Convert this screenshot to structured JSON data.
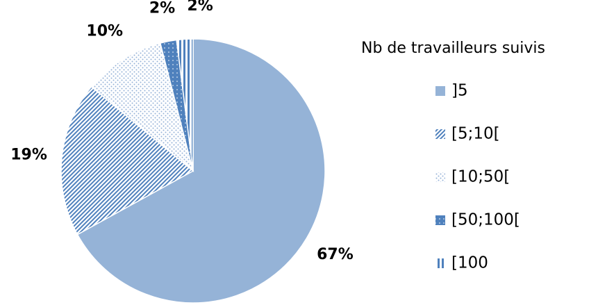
{
  "chart_data": {
    "type": "pie",
    "legend_title": "Nb de travailleurs suivis",
    "categories": [
      "]5",
      "[5;10[",
      "[10;50[",
      "[50;100[",
      "[100"
    ],
    "values": [
      67,
      19,
      10,
      2,
      2
    ],
    "value_labels": [
      "67%",
      "19%",
      "10%",
      "2%",
      "2%"
    ],
    "colors": [
      "#95b3d7",
      "#4f81bd",
      "#95b3d7",
      "#4f81bd",
      "#4f81bd"
    ],
    "patterns": [
      "solid",
      "diagonal",
      "dots",
      "solid-dots",
      "vertical"
    ],
    "legend": "right"
  }
}
